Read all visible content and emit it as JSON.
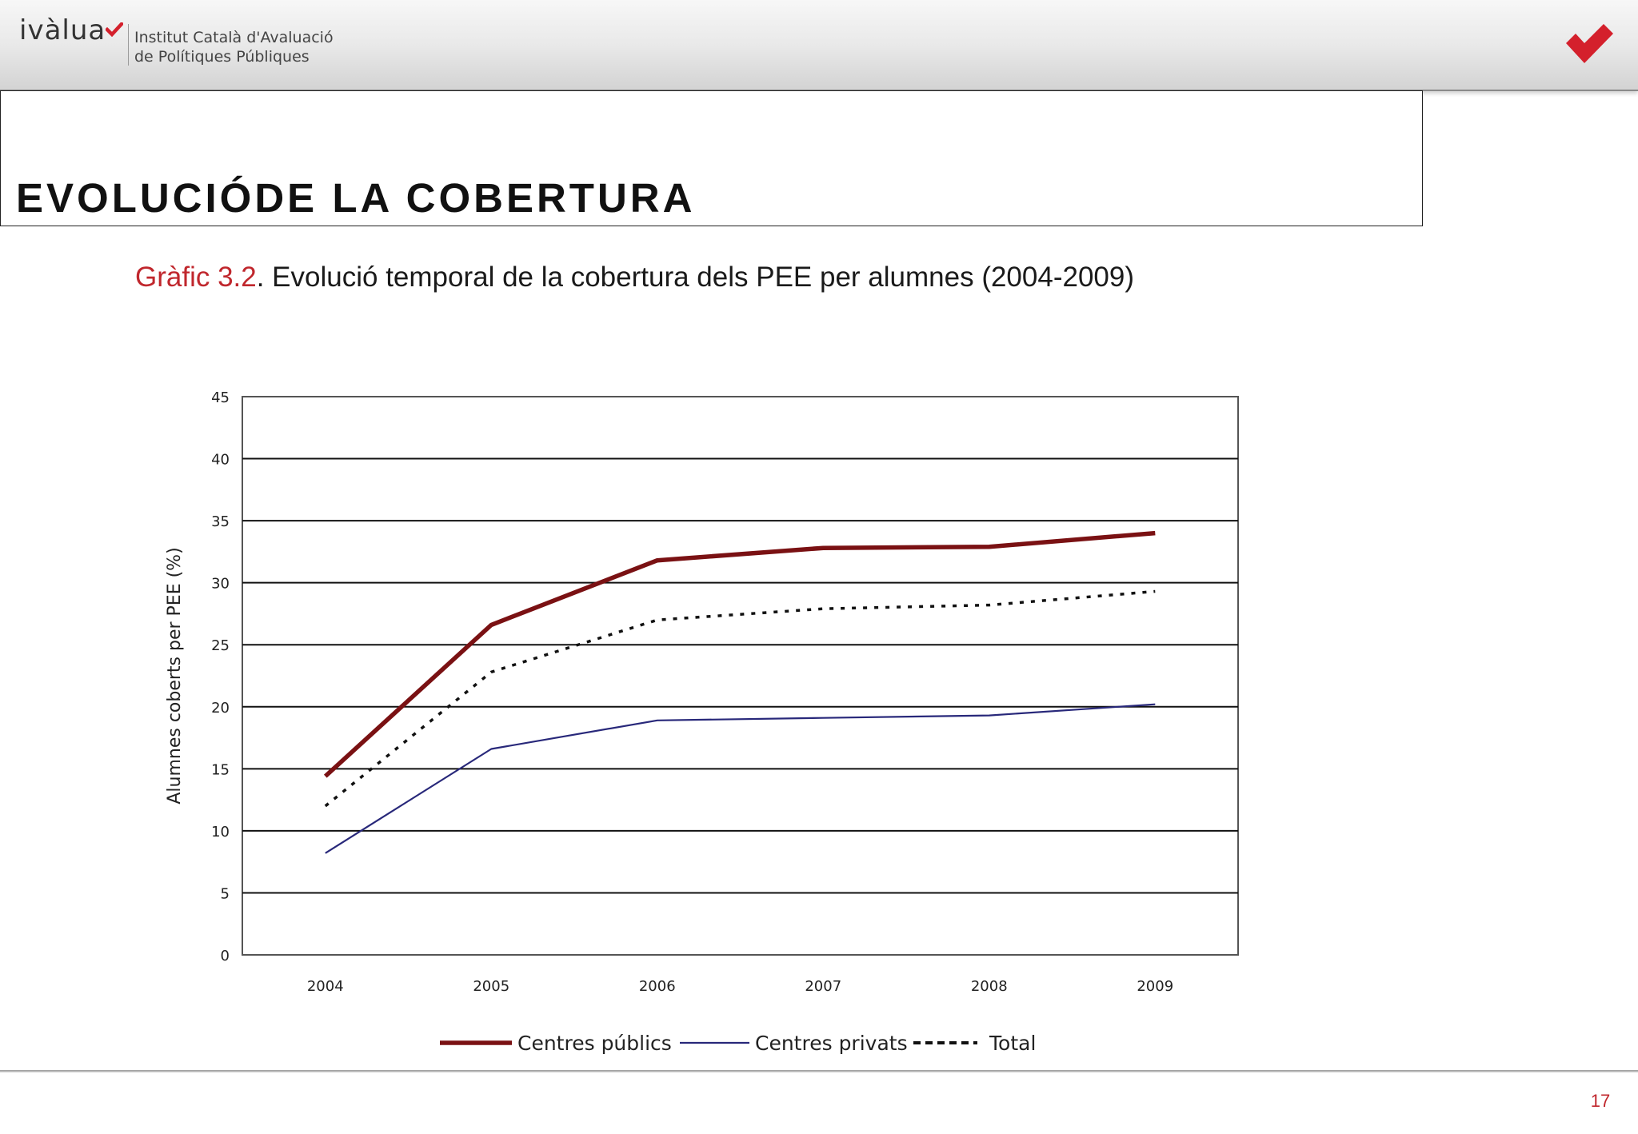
{
  "header": {
    "logo_text": "ivàlua",
    "org_line1": "Institut Català d'Avaluació",
    "org_line2": "de Polítiques Públiques",
    "brand_color": "#d4202c"
  },
  "page": {
    "title": "EVOLUCIÓDE LA COBERTURA",
    "number": "17"
  },
  "caption": {
    "prefix": "Gràfic 3.2",
    "text": ". Evolució temporal de la cobertura dels PEE per alumnes (2004-2009)"
  },
  "chart_data": {
    "type": "line",
    "title": "Gràfic 3.2. Evolució temporal de la cobertura dels PEE per alumnes (2004-2009)",
    "xlabel": "",
    "ylabel": "Alumnes coberts per PEE (%)",
    "x": [
      "2004",
      "2005",
      "2006",
      "2007",
      "2008",
      "2009"
    ],
    "ylim": [
      0,
      45
    ],
    "yticks": [
      0,
      5,
      10,
      15,
      20,
      25,
      30,
      35,
      40,
      45
    ],
    "grid": true,
    "legend_position": "bottom",
    "series": [
      {
        "name": "Centres públics",
        "values": [
          14.4,
          26.6,
          31.8,
          32.8,
          32.9,
          34.0
        ],
        "color": "#7a1113",
        "style": "solid-thick"
      },
      {
        "name": "Centres privats",
        "values": [
          8.2,
          16.6,
          18.9,
          19.1,
          19.3,
          20.2
        ],
        "color": "#28287a",
        "style": "solid-thin"
      },
      {
        "name": "Total",
        "values": [
          12.0,
          22.8,
          27.0,
          27.9,
          28.2,
          29.3
        ],
        "color": "#111111",
        "style": "dotted"
      }
    ]
  }
}
